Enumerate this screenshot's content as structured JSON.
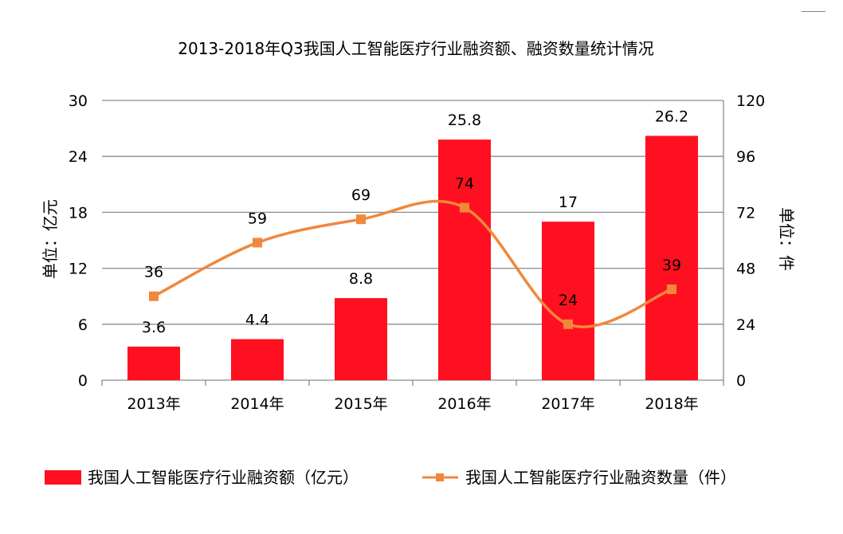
{
  "chart_data": {
    "type": "bar",
    "title": "2013-2018年Q3我国人工智能医疗行业融资额、融资数量统计情况",
    "categories": [
      "2013年",
      "2014年",
      "2015年",
      "2016年",
      "2017年",
      "2018年"
    ],
    "ylabel": "单位：亿元",
    "y2label": "单位：件",
    "ylim": [
      0,
      30
    ],
    "y2lim": [
      0,
      120
    ],
    "yticks": [
      0,
      6,
      12,
      18,
      24,
      30
    ],
    "y2ticks": [
      0,
      24,
      48,
      72,
      96,
      120
    ],
    "grid": true,
    "legend_position": "bottom",
    "series": [
      {
        "name": "我国人工智能医疗行业融资额（亿元）",
        "type": "bar",
        "axis": "left",
        "color": "#ff1020",
        "values": [
          3.6,
          4.4,
          8.8,
          25.8,
          17,
          26.2
        ],
        "labels": [
          "3.6",
          "4.4",
          "8.8",
          "25.8",
          "17",
          "26.2"
        ]
      },
      {
        "name": "我国人工智能医疗行业融资数量（件）",
        "type": "line",
        "axis": "right",
        "color": "#f0883c",
        "marker": "square",
        "smooth": true,
        "values": [
          36,
          59,
          69,
          74,
          24,
          39
        ],
        "labels": [
          "36",
          "59",
          "69",
          "74",
          "24",
          "39"
        ]
      }
    ]
  }
}
